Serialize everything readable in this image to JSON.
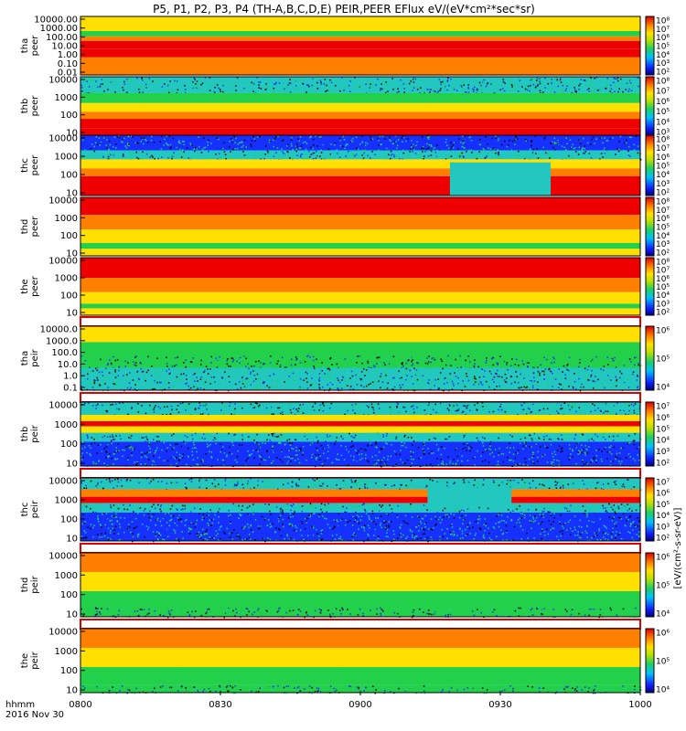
{
  "title": "P5, P1, P2, P3, P4 (TH-A,B,C,D,E) PEIR,PEER EFlux eV/(eV*cm²*sec*sr)",
  "colorbar_label": "[eV/(cm²-s-sr-eV)]",
  "time_axis": {
    "ticks": [
      "0800",
      "0830",
      "0900",
      "0930",
      "1000"
    ],
    "unit_label": "hhmm",
    "date_label": "2016 Nov 30"
  },
  "colors": {
    "red": "#ee0000",
    "orange": "#ff7f00",
    "yellow": "#ffe000",
    "green": "#22d04a",
    "cyan": "#22c8c0",
    "blue": "#1530ff",
    "black": "#000000"
  },
  "chart_data": {
    "type": "heatmap",
    "x_range": [
      "08:00",
      "10:00"
    ],
    "panels": [
      {
        "id": "tha_peer",
        "probe": "tha",
        "species": "peer",
        "y_ticks": [
          "10000.00",
          "1000.00",
          "100.00",
          "10.00",
          "1.00",
          "0.10",
          "0.01"
        ],
        "cbar_ticks": [
          "10⁸",
          "10⁷",
          "10⁶",
          "10⁵",
          "10⁴",
          "10³",
          "10²"
        ]
      },
      {
        "id": "thb_peer",
        "probe": "thb",
        "species": "peer",
        "y_ticks": [
          "10000",
          "1000",
          "100",
          "10"
        ],
        "cbar_ticks": [
          "10⁸",
          "10⁷",
          "10⁶",
          "10⁵",
          "10⁴",
          "10³"
        ]
      },
      {
        "id": "thc_peer",
        "probe": "thc",
        "species": "peer",
        "y_ticks": [
          "10000",
          "1000",
          "100",
          "10"
        ],
        "cbar_ticks": [
          "10⁸",
          "10⁷",
          "10⁶",
          "10⁵",
          "10⁴",
          "10³",
          "10²"
        ]
      },
      {
        "id": "thd_peer",
        "probe": "thd",
        "species": "peer",
        "y_ticks": [
          "10000",
          "1000",
          "100",
          "10"
        ],
        "cbar_ticks": [
          "10⁸",
          "10⁷",
          "10⁶",
          "10⁵",
          "10⁴",
          "10³",
          "10²"
        ]
      },
      {
        "id": "the_peer",
        "probe": "the",
        "species": "peer",
        "y_ticks": [
          "10000",
          "1000",
          "100",
          "10"
        ],
        "cbar_ticks": [
          "10⁸",
          "10⁷",
          "10⁶",
          "10⁵",
          "10⁴",
          "10³",
          "10²"
        ]
      },
      {
        "id": "tha_peir",
        "probe": "tha",
        "species": "peir",
        "y_ticks": [
          "10000.0",
          "1000.0",
          "100.0",
          "10.0",
          "1.0",
          "0.1"
        ],
        "cbar_ticks": [
          "10⁶",
          "10⁵",
          "10⁴"
        ]
      },
      {
        "id": "thb_peir",
        "probe": "thb",
        "species": "peir",
        "y_ticks": [
          "10000",
          "1000",
          "100",
          "10"
        ],
        "cbar_ticks": [
          "10⁷",
          "10⁶",
          "10⁵",
          "10⁴",
          "10³",
          "10²"
        ]
      },
      {
        "id": "thc_peir",
        "probe": "thc",
        "species": "peir",
        "y_ticks": [
          "10000",
          "1000",
          "100",
          "10"
        ],
        "cbar_ticks": [
          "10⁷",
          "10⁶",
          "10⁵",
          "10⁴",
          "10³",
          "10²"
        ]
      },
      {
        "id": "thd_peir",
        "probe": "thd",
        "species": "peir",
        "y_ticks": [
          "10000",
          "1000",
          "100",
          "10"
        ],
        "cbar_ticks": [
          "10⁶",
          "10⁵",
          "10⁴"
        ]
      },
      {
        "id": "the_peir",
        "probe": "the",
        "species": "peir",
        "y_ticks": [
          "10000",
          "1000",
          "100",
          "10"
        ],
        "cbar_ticks": [
          "10⁶",
          "10⁵",
          "10⁴"
        ]
      }
    ]
  }
}
